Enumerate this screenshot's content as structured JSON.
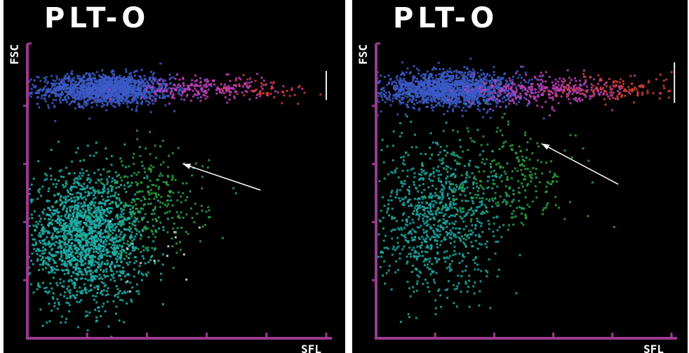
{
  "chart_data": [
    {
      "type": "scatter",
      "title": "PLT-O",
      "xlabel": "SFL",
      "ylabel": "FSC",
      "xlim": [
        0,
        5
      ],
      "ylim": [
        0,
        5
      ],
      "grid": false,
      "colors": {
        "axis": "#9b3a8f",
        "background": "#000000"
      },
      "series": [
        {
          "name": "",
          "color": "#3c5ac8",
          "cx": 1.3,
          "cy": 4.3,
          "sx": 0.55,
          "sy": 0.13,
          "n": 1500,
          "values_note": ""
        },
        {
          "name": "",
          "color": "#c040b8",
          "cx": 3.0,
          "cy": 4.32,
          "sx": 0.55,
          "sy": 0.1,
          "n": 220
        },
        {
          "name": "",
          "color": "#d0402a",
          "cx": 4.0,
          "cy": 4.3,
          "sx": 0.35,
          "sy": 0.1,
          "n": 45
        },
        {
          "name": "",
          "color": "#20b0a8",
          "cx": 0.95,
          "cy": 1.75,
          "sx": 0.5,
          "sy": 0.55,
          "n": 1900
        },
        {
          "name": "",
          "color": "#2aa040",
          "cx": 2.1,
          "cy": 2.35,
          "sx": 0.45,
          "sy": 0.45,
          "n": 260
        },
        {
          "name": "",
          "color": "#dddddd",
          "cx": 2.1,
          "cy": 1.3,
          "sx": 0.4,
          "sy": 0.35,
          "n": 14
        }
      ],
      "arrow": {
        "from": [
          3.9,
          2.55
        ],
        "to": [
          2.6,
          3.0
        ]
      },
      "tick_mark": {
        "x": 5.0,
        "y": [
          4.1,
          4.6
        ]
      }
    },
    {
      "type": "scatter",
      "title": "PLT-O",
      "xlabel": "SFL",
      "ylabel": "FSC",
      "xlim": [
        0,
        5
      ],
      "ylim": [
        0,
        5
      ],
      "grid": false,
      "colors": {
        "axis": "#9b3a8f",
        "background": "#000000"
      },
      "series": [
        {
          "name": "",
          "color": "#3c5ac8",
          "cx": 1.2,
          "cy": 4.3,
          "sx": 0.6,
          "sy": 0.15,
          "n": 1500
        },
        {
          "name": "",
          "color": "#c040b8",
          "cx": 2.9,
          "cy": 4.3,
          "sx": 0.65,
          "sy": 0.13,
          "n": 330
        },
        {
          "name": "",
          "color": "#d0402a",
          "cx": 4.1,
          "cy": 4.32,
          "sx": 0.5,
          "sy": 0.12,
          "n": 120
        },
        {
          "name": "",
          "color": "#1ea8a0",
          "cx": 1.0,
          "cy": 2.1,
          "sx": 0.55,
          "sy": 0.65,
          "n": 900
        },
        {
          "name": "",
          "color": "#2aa040",
          "cx": 2.2,
          "cy": 2.8,
          "sx": 0.6,
          "sy": 0.45,
          "n": 260
        }
      ],
      "arrow": {
        "from": [
          4.1,
          2.65
        ],
        "to": [
          2.8,
          3.35
        ]
      },
      "tick_mark": {
        "x": 5.05,
        "y": [
          4.05,
          4.75
        ]
      }
    }
  ]
}
